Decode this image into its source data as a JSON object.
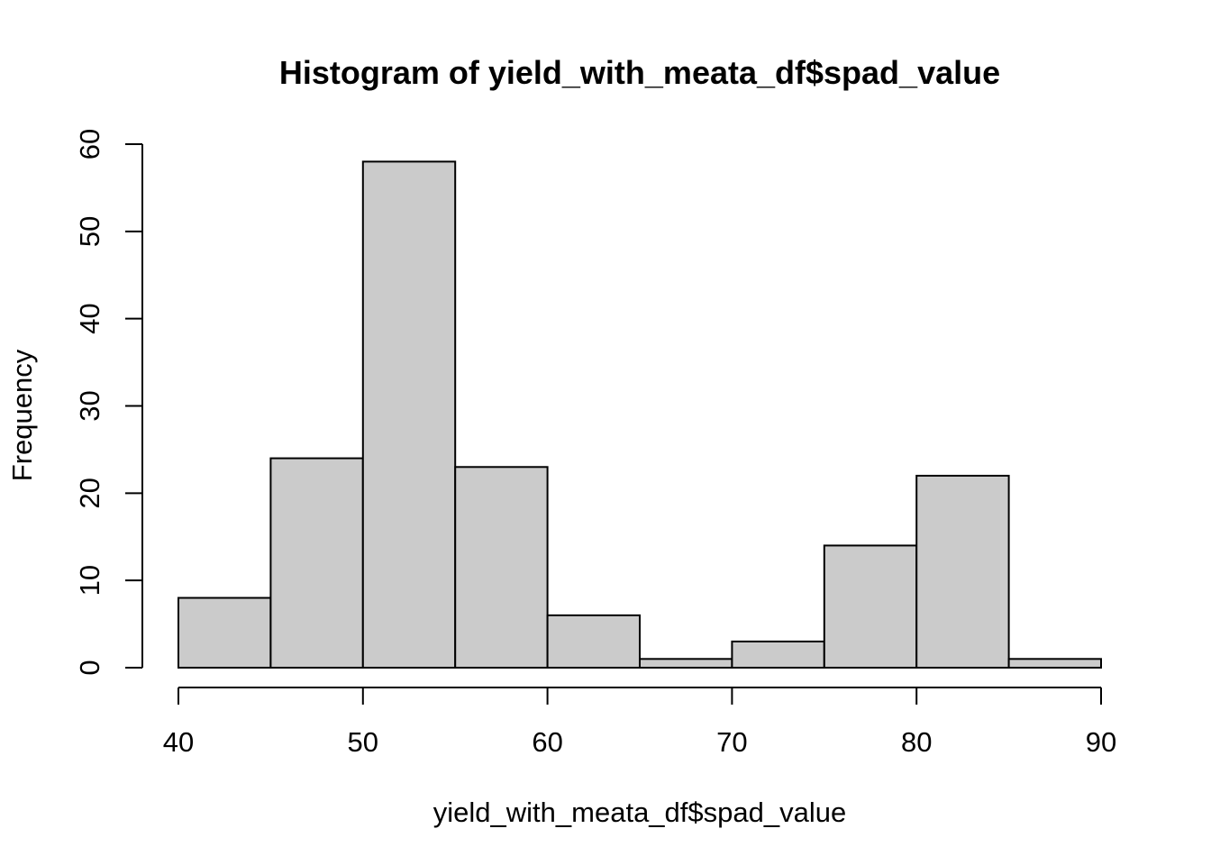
{
  "chart_data": {
    "type": "bar",
    "subtype": "histogram",
    "title": "Histogram of yield_with_meata_df$spad_value",
    "xlabel": "yield_with_meata_df$spad_value",
    "ylabel": "Frequency",
    "bins": [
      {
        "start": 40,
        "end": 45,
        "count": 8
      },
      {
        "start": 45,
        "end": 50,
        "count": 24
      },
      {
        "start": 50,
        "end": 55,
        "count": 58
      },
      {
        "start": 55,
        "end": 60,
        "count": 23
      },
      {
        "start": 60,
        "end": 65,
        "count": 6
      },
      {
        "start": 65,
        "end": 70,
        "count": 1
      },
      {
        "start": 70,
        "end": 75,
        "count": 3
      },
      {
        "start": 75,
        "end": 80,
        "count": 14
      },
      {
        "start": 80,
        "end": 85,
        "count": 22
      },
      {
        "start": 85,
        "end": 90,
        "count": 1
      }
    ],
    "xlim": [
      40,
      90
    ],
    "ylim": [
      0,
      60
    ],
    "xticks": [
      "40",
      "50",
      "60",
      "70",
      "80",
      "90"
    ],
    "yticks": [
      "0",
      "10",
      "20",
      "30",
      "40",
      "50",
      "60"
    ],
    "bar_color": "#cbcbcb",
    "edge_color": "#000000",
    "grid": false,
    "legend": "none"
  }
}
